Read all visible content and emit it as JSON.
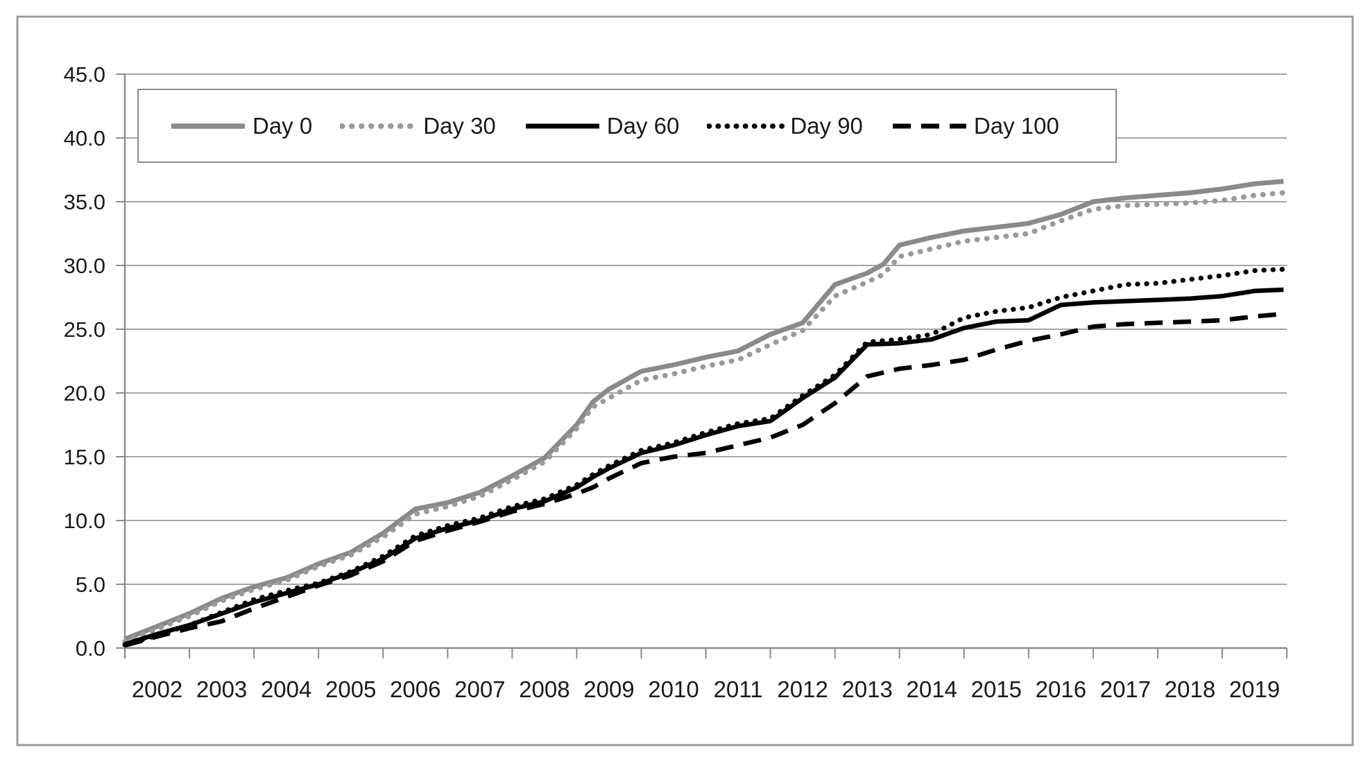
{
  "figure": {
    "background": "#ffffff",
    "border_color": "#9b9b9b"
  },
  "chart_data": {
    "type": "line",
    "title": "",
    "xlabel": "",
    "ylabel": "",
    "ylim": [
      0,
      45
    ],
    "grid": true,
    "legend_position": "top",
    "grid_color": "#a6a6a6",
    "axis_color": "#8c8c8c",
    "text_color": "#1a1a1a",
    "y_tick_labels": [
      "0.0",
      "5.0",
      "10.0",
      "15.0",
      "20.0",
      "25.0",
      "30.0",
      "35.0",
      "40.0",
      "45.0"
    ],
    "x_tick_labels": [
      "2002",
      "2003",
      "2004",
      "2005",
      "2006",
      "2007",
      "2008",
      "2009",
      "2010",
      "2011",
      "2012",
      "2013",
      "2014",
      "2015",
      "2016",
      "2017",
      "2018",
      "2019"
    ],
    "x": [
      2002,
      2002.5,
      2003,
      2003.5,
      2004,
      2004.5,
      2005,
      2005.5,
      2006,
      2006.5,
      2007,
      2007.5,
      2008,
      2008.5,
      2009,
      2009.25,
      2009.5,
      2010,
      2010.5,
      2011,
      2011.5,
      2012,
      2012.5,
      2013,
      2013.5,
      2013.75,
      2014,
      2014.5,
      2015,
      2015.5,
      2016,
      2016.5,
      2017,
      2017.5,
      2018,
      2018.5,
      2019,
      2019.5,
      2019.95
    ],
    "series": [
      {
        "name": "Day 0",
        "color": "#8a8a8a",
        "style": "solid",
        "width": 7,
        "values": [
          0.7,
          1.7,
          2.7,
          3.9,
          4.8,
          5.5,
          6.6,
          7.5,
          9.0,
          10.9,
          11.4,
          12.2,
          13.5,
          14.9,
          17.5,
          19.3,
          20.3,
          21.7,
          22.2,
          22.8,
          23.3,
          24.6,
          25.5,
          28.5,
          29.4,
          30.1,
          31.6,
          32.2,
          32.7,
          33.0,
          33.3,
          34.0,
          35.0,
          35.3,
          35.5,
          35.7,
          36.0,
          36.4,
          36.6
        ]
      },
      {
        "name": "Day 30",
        "color": "#9a9a9a",
        "style": "dotted",
        "width": 7.5,
        "values": [
          0.5,
          1.5,
          2.5,
          3.7,
          4.6,
          5.3,
          6.4,
          7.3,
          8.7,
          10.5,
          11.1,
          11.9,
          13.2,
          14.6,
          17.2,
          18.9,
          19.6,
          21.0,
          21.5,
          22.1,
          22.6,
          23.8,
          24.9,
          27.6,
          28.7,
          29.3,
          30.7,
          31.3,
          31.9,
          32.2,
          32.5,
          33.5,
          34.4,
          34.7,
          34.8,
          34.9,
          35.1,
          35.5,
          35.7
        ]
      },
      {
        "name": "Day 60",
        "color": "#000000",
        "style": "solid",
        "width": 6.5,
        "values": [
          0.3,
          1.1,
          1.8,
          2.7,
          3.6,
          4.3,
          5.0,
          5.9,
          7.0,
          8.6,
          9.4,
          10.0,
          10.9,
          11.5,
          12.6,
          13.4,
          14.1,
          15.3,
          15.9,
          16.7,
          17.4,
          17.8,
          19.6,
          21.2,
          23.8,
          23.85,
          23.9,
          24.2,
          25.1,
          25.6,
          25.7,
          26.9,
          27.1,
          27.2,
          27.3,
          27.4,
          27.6,
          28.0,
          28.1
        ]
      },
      {
        "name": "Day 90",
        "color": "#000000",
        "style": "dotted",
        "width": 7,
        "values": [
          0.25,
          1.0,
          1.8,
          2.8,
          3.8,
          4.5,
          5.1,
          6.0,
          7.2,
          8.8,
          9.6,
          10.2,
          11.1,
          11.7,
          12.8,
          13.6,
          14.3,
          15.5,
          16.1,
          16.9,
          17.6,
          18.0,
          19.8,
          21.4,
          24.0,
          24.1,
          24.2,
          24.6,
          25.9,
          26.4,
          26.7,
          27.5,
          28.0,
          28.5,
          28.6,
          28.9,
          29.2,
          29.6,
          29.7
        ]
      },
      {
        "name": "Day 100",
        "color": "#000000",
        "style": "dashed",
        "width": 6.5,
        "values": [
          0.2,
          0.9,
          1.55,
          2.1,
          3.1,
          4.0,
          4.9,
          5.7,
          6.8,
          8.4,
          9.2,
          9.9,
          10.7,
          11.3,
          12.1,
          12.6,
          13.3,
          14.5,
          15.0,
          15.3,
          15.9,
          16.5,
          17.5,
          19.2,
          21.3,
          21.6,
          21.9,
          22.2,
          22.6,
          23.4,
          24.1,
          24.6,
          25.2,
          25.4,
          25.5,
          25.6,
          25.7,
          26.0,
          26.2
        ]
      }
    ]
  }
}
